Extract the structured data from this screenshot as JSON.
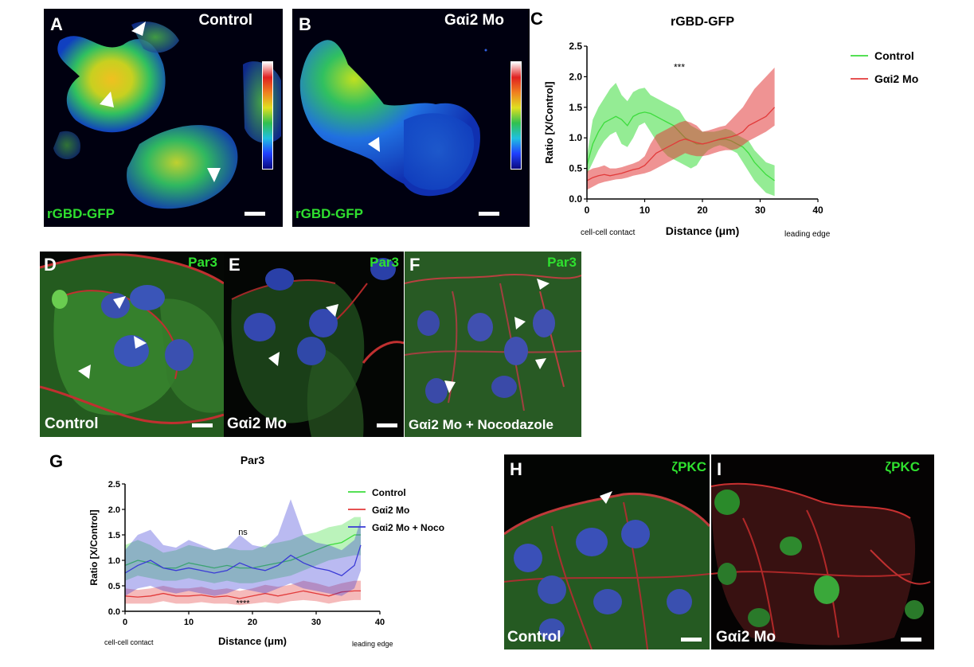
{
  "panels": {
    "A": {
      "letter": "A",
      "title": "Control",
      "stain": "rGBD-GFP"
    },
    "B": {
      "letter": "B",
      "title": "Gαi2 Mo",
      "stain": "rGBD-GFP"
    },
    "C": {
      "letter": "C"
    },
    "D": {
      "letter": "D",
      "title": "Control",
      "stain": "Par3"
    },
    "E": {
      "letter": "E",
      "title": "Gαi2 Mo",
      "stain": "Par3"
    },
    "F": {
      "letter": "F",
      "title": "Gαi2 Mo + Nocodazole",
      "stain": "Par3"
    },
    "G": {
      "letter": "G"
    },
    "H": {
      "letter": "H",
      "title": "Control",
      "stain": "ζPKC"
    },
    "I": {
      "letter": "I",
      "title": "Gαi2 Mo",
      "stain": "ζPKC"
    }
  },
  "colors": {
    "control": "#3ddc3d",
    "mo": "#e23a3a",
    "noco": "#3a3ad6"
  },
  "chart_data": [
    {
      "id": "C",
      "type": "line",
      "title": "rGBD-GFP",
      "xlabel": "Distance (μm)",
      "ylabel": "Ratio [X/Control]",
      "x_left_note": "cell-cell contact",
      "x_right_note": "leading edge",
      "xlim": [
        0,
        40
      ],
      "ylim": [
        0,
        2.5
      ],
      "xticks": [
        0,
        10,
        20,
        30,
        40
      ],
      "yticks": [
        "0.0",
        "0.5",
        "1.0",
        "1.5",
        "2.0",
        "2.5"
      ],
      "annotation": {
        "text": "***",
        "x": 16,
        "y": 2.1
      },
      "legend_position": "top-right",
      "legend": [
        "Control",
        "Gαi2 Mo"
      ],
      "series": [
        {
          "name": "Control",
          "color": "#3ddc3d",
          "x": [
            0,
            1,
            2,
            3,
            4,
            5,
            6,
            7,
            8,
            9,
            10,
            11,
            12,
            13,
            14,
            15,
            16,
            17,
            18,
            19,
            20,
            21,
            22,
            23,
            24,
            25,
            26,
            27,
            28,
            29,
            30,
            31,
            32.5
          ],
          "mean": [
            0.55,
            0.9,
            1.1,
            1.25,
            1.3,
            1.35,
            1.3,
            1.2,
            1.35,
            1.4,
            1.42,
            1.4,
            1.35,
            1.3,
            1.25,
            1.2,
            1.1,
            1.0,
            0.95,
            0.9,
            0.9,
            0.92,
            0.95,
            0.97,
            0.98,
            0.95,
            0.9,
            0.85,
            0.75,
            0.6,
            0.5,
            0.4,
            0.3
          ],
          "lower": [
            0.4,
            0.6,
            0.8,
            0.95,
            1.05,
            1.1,
            0.9,
            0.85,
            1.0,
            1.2,
            1.25,
            1.1,
            0.95,
            0.8,
            0.7,
            0.65,
            0.6,
            0.55,
            0.5,
            0.55,
            0.7,
            0.8,
            0.85,
            0.88,
            0.85,
            0.8,
            0.75,
            0.6,
            0.45,
            0.3,
            0.2,
            0.1,
            0.05
          ],
          "upper": [
            0.7,
            1.3,
            1.5,
            1.65,
            1.8,
            1.9,
            1.7,
            1.6,
            1.75,
            1.8,
            1.82,
            1.7,
            1.65,
            1.6,
            1.55,
            1.5,
            1.45,
            1.3,
            1.2,
            1.15,
            1.1,
            1.1,
            1.1,
            1.12,
            1.15,
            1.12,
            1.05,
            1.0,
            0.95,
            0.8,
            0.7,
            0.6,
            0.55
          ]
        },
        {
          "name": "Gαi2 Mo",
          "color": "#e23a3a",
          "x": [
            0,
            1,
            2,
            3,
            4,
            5,
            6,
            7,
            8,
            9,
            10,
            11,
            12,
            13,
            14,
            15,
            16,
            17,
            18,
            19,
            20,
            21,
            22,
            23,
            24,
            25,
            26,
            27,
            28,
            29,
            30,
            31,
            32.5
          ],
          "mean": [
            0.3,
            0.35,
            0.38,
            0.4,
            0.38,
            0.4,
            0.42,
            0.45,
            0.48,
            0.5,
            0.55,
            0.65,
            0.75,
            0.8,
            0.85,
            0.9,
            0.95,
            0.98,
            0.95,
            0.92,
            0.9,
            0.92,
            0.95,
            0.98,
            1.0,
            1.02,
            1.05,
            1.1,
            1.2,
            1.25,
            1.3,
            1.35,
            1.5
          ],
          "lower": [
            0.15,
            0.2,
            0.25,
            0.28,
            0.3,
            0.32,
            0.33,
            0.35,
            0.38,
            0.4,
            0.42,
            0.45,
            0.5,
            0.55,
            0.6,
            0.65,
            0.7,
            0.75,
            0.72,
            0.7,
            0.7,
            0.72,
            0.75,
            0.78,
            0.8,
            0.8,
            0.82,
            0.88,
            0.95,
            1.0,
            1.05,
            1.1,
            1.2
          ],
          "upper": [
            0.45,
            0.5,
            0.52,
            0.55,
            0.5,
            0.5,
            0.52,
            0.55,
            0.58,
            0.62,
            0.7,
            0.9,
            1.05,
            1.1,
            1.15,
            1.2,
            1.25,
            1.28,
            1.25,
            1.2,
            1.1,
            1.12,
            1.15,
            1.18,
            1.2,
            1.3,
            1.4,
            1.5,
            1.65,
            1.8,
            1.9,
            2.0,
            2.15
          ]
        }
      ]
    },
    {
      "id": "G",
      "type": "line",
      "title": "Par3",
      "xlabel": "Distance (μm)",
      "ylabel": "Ratio [X/Control]",
      "x_left_note": "cell-cell contact",
      "x_right_note": "leading edge",
      "xlim": [
        0,
        40
      ],
      "ylim": [
        0,
        2.5
      ],
      "xticks": [
        0,
        10,
        20,
        30,
        40
      ],
      "yticks": [
        "0.0",
        "0.5",
        "1.0",
        "1.5",
        "2.0",
        "2.5"
      ],
      "annotations": [
        {
          "text": "ns",
          "x": 18.5,
          "y": 1.5
        },
        {
          "text": "****",
          "x": 18.5,
          "y": 0.1
        }
      ],
      "legend_position": "top-right",
      "legend": [
        "Control",
        "Gαi2 Mo",
        "Gαi2 Mo + Noco"
      ],
      "series": [
        {
          "name": "Control",
          "color": "#3ddc3d",
          "x": [
            0,
            2,
            4,
            6,
            8,
            10,
            12,
            14,
            16,
            18,
            20,
            22,
            24,
            26,
            28,
            30,
            32,
            34,
            36,
            37
          ],
          "mean": [
            0.9,
            1.0,
            0.95,
            0.85,
            0.85,
            0.95,
            0.9,
            0.85,
            0.9,
            0.85,
            0.85,
            0.9,
            0.95,
            1.0,
            1.1,
            1.2,
            1.3,
            1.35,
            1.5,
            1.5
          ],
          "lower": [
            0.6,
            0.7,
            0.65,
            0.6,
            0.6,
            0.65,
            0.6,
            0.55,
            0.6,
            0.55,
            0.55,
            0.6,
            0.65,
            0.7,
            0.8,
            0.9,
            1.0,
            1.05,
            1.1,
            1.1
          ],
          "upper": [
            1.3,
            1.4,
            1.3,
            1.15,
            1.2,
            1.3,
            1.25,
            1.2,
            1.25,
            1.2,
            1.2,
            1.3,
            1.35,
            1.4,
            1.5,
            1.55,
            1.65,
            1.7,
            1.85,
            1.85
          ]
        },
        {
          "name": "Gαi2 Mo",
          "color": "#e23a3a",
          "x": [
            0,
            2,
            4,
            6,
            8,
            10,
            12,
            14,
            16,
            18,
            20,
            22,
            24,
            26,
            28,
            30,
            32,
            34,
            36,
            37
          ],
          "mean": [
            0.3,
            0.28,
            0.3,
            0.35,
            0.3,
            0.3,
            0.32,
            0.28,
            0.3,
            0.25,
            0.3,
            0.35,
            0.3,
            0.35,
            0.4,
            0.35,
            0.3,
            0.38,
            0.4,
            0.4
          ],
          "lower": [
            0.15,
            0.15,
            0.15,
            0.2,
            0.15,
            0.15,
            0.18,
            0.15,
            0.15,
            0.12,
            0.15,
            0.18,
            0.15,
            0.2,
            0.22,
            0.2,
            0.15,
            0.2,
            0.22,
            0.22
          ],
          "upper": [
            0.45,
            0.42,
            0.45,
            0.5,
            0.45,
            0.45,
            0.48,
            0.42,
            0.45,
            0.4,
            0.45,
            0.52,
            0.48,
            0.52,
            0.6,
            0.55,
            0.48,
            0.55,
            0.6,
            0.6
          ]
        },
        {
          "name": "Gαi2 Mo + Noco",
          "color": "#3a3ad6",
          "x": [
            0,
            2,
            4,
            6,
            8,
            10,
            12,
            14,
            16,
            18,
            20,
            22,
            24,
            26,
            28,
            30,
            32,
            34,
            36,
            37
          ],
          "mean": [
            0.75,
            0.9,
            1.0,
            0.85,
            0.8,
            0.85,
            0.8,
            0.75,
            0.8,
            0.95,
            0.85,
            0.8,
            0.9,
            1.1,
            0.95,
            0.85,
            0.8,
            0.7,
            0.9,
            1.3
          ],
          "lower": [
            0.3,
            0.45,
            0.5,
            0.4,
            0.35,
            0.4,
            0.35,
            0.3,
            0.35,
            0.45,
            0.4,
            0.35,
            0.45,
            0.55,
            0.45,
            0.4,
            0.35,
            0.3,
            0.45,
            0.8
          ],
          "upper": [
            1.2,
            1.5,
            1.6,
            1.3,
            1.25,
            1.4,
            1.3,
            1.2,
            1.25,
            1.5,
            1.3,
            1.25,
            1.5,
            2.2,
            1.5,
            1.35,
            1.3,
            1.2,
            1.4,
            1.8
          ]
        }
      ]
    }
  ]
}
